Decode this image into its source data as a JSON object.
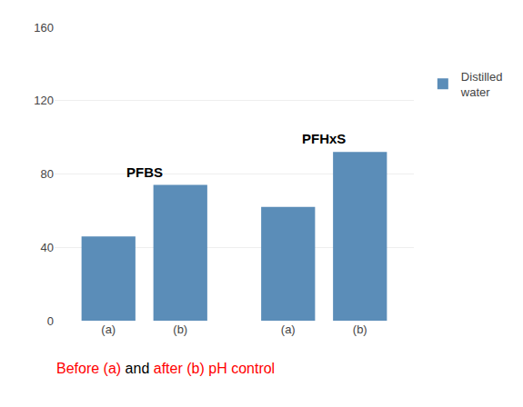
{
  "chart_data": {
    "type": "bar",
    "categories": [
      "(a)",
      "(b)",
      "(a)",
      "(b)"
    ],
    "groups": [
      "PFBS",
      "PFBS",
      "PFHxS",
      "PFHxS"
    ],
    "series": [
      {
        "name": "Distilled\nwater",
        "color": "#5B8DB8",
        "values": [
          46,
          74,
          62,
          92
        ]
      }
    ],
    "ylim": [
      0,
      160
    ],
    "yticks": [
      0,
      40,
      80,
      120,
      160
    ],
    "grid": true,
    "legend": "right",
    "caption": [
      {
        "text": "Before",
        "color": "red"
      },
      {
        "text": "(a)",
        "color": "red"
      },
      {
        "text": "and",
        "color": "black"
      },
      {
        "text": "after",
        "color": "red"
      },
      {
        "text": "(b)",
        "color": "red"
      },
      {
        "text": "pH control",
        "color": "red"
      }
    ]
  }
}
